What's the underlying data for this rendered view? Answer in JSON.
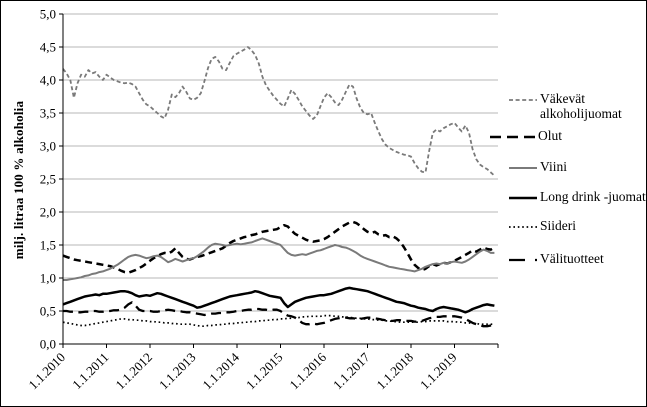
{
  "figure": {
    "background": "#ffffff",
    "border_color": "#000000",
    "grid_color": "#b7b7b7",
    "axis_color": "#000000"
  },
  "y_axis": {
    "title": "milj. litraa 100 % alkoholia",
    "tick_labels": [
      "5,0",
      "4,5",
      "4,0",
      "3,5",
      "3,0",
      "2,5",
      "2,0",
      "1,5",
      "1,0",
      "0,5",
      "0,0"
    ],
    "min": 0,
    "max": 5,
    "step": 0.5
  },
  "x_axis": {
    "tick_labels": [
      "1.1.2010",
      "1.1.2011",
      "1.1.2012",
      "1.1.2013",
      "1.1.2014",
      "1.1.2015",
      "1.1.2016",
      "1.1.2017",
      "1.1.2018",
      "1.1.2019"
    ],
    "start_year": 2010,
    "end_year": 2020,
    "tick_interval_years": 1
  },
  "legend": {
    "items": [
      {
        "series": "vakevat",
        "label": "Väkevät alkoholijuomat"
      },
      {
        "series": "olut",
        "label": "Olut"
      },
      {
        "series": "viini",
        "label": "Viini"
      },
      {
        "series": "longdrink",
        "label": "Long drink -juomat"
      },
      {
        "series": "siideri",
        "label": "Siideri"
      },
      {
        "series": "valituotteet",
        "label": "Välituotteet"
      }
    ]
  },
  "chart_data": {
    "type": "line",
    "title": "",
    "xlabel": "",
    "ylabel": "milj. litraa 100 % alkoholia",
    "ylim": [
      0,
      5
    ],
    "xlim_years": [
      2010,
      2020
    ],
    "grid": true,
    "legend_position": "right",
    "x_start_year": 2010,
    "points_per_year": 12,
    "x_tick_labels": [
      "1.1.2010",
      "1.1.2011",
      "1.1.2012",
      "1.1.2013",
      "1.1.2014",
      "1.1.2015",
      "1.1.2016",
      "1.1.2017",
      "1.1.2018",
      "1.1.2019"
    ],
    "series": [
      {
        "id": "vakevat",
        "name": "Väkevät alkoholijuomat",
        "color": "#7a7a7a",
        "dash": "4 2.6",
        "legend_dash": "4 2.6",
        "width": 1.8,
        "values": [
          4.17,
          4.1,
          4.0,
          3.73,
          3.95,
          4.08,
          4.05,
          4.15,
          4.1,
          4.12,
          4.05,
          4.0,
          4.08,
          4.04,
          4.0,
          3.98,
          3.96,
          3.95,
          3.96,
          3.94,
          3.9,
          3.8,
          3.7,
          3.63,
          3.6,
          3.55,
          3.5,
          3.45,
          3.42,
          3.55,
          3.78,
          3.74,
          3.8,
          3.9,
          3.82,
          3.72,
          3.7,
          3.73,
          3.8,
          3.98,
          4.18,
          4.32,
          4.35,
          4.28,
          4.17,
          4.15,
          4.26,
          4.36,
          4.4,
          4.43,
          4.46,
          4.5,
          4.45,
          4.38,
          4.25,
          4.05,
          3.92,
          3.84,
          3.76,
          3.7,
          3.64,
          3.6,
          3.72,
          3.85,
          3.79,
          3.7,
          3.6,
          3.53,
          3.46,
          3.41,
          3.46,
          3.6,
          3.73,
          3.8,
          3.74,
          3.66,
          3.62,
          3.7,
          3.82,
          3.93,
          3.9,
          3.72,
          3.58,
          3.5,
          3.48,
          3.5,
          3.35,
          3.22,
          3.1,
          3.02,
          2.97,
          2.94,
          2.91,
          2.89,
          2.87,
          2.86,
          2.84,
          2.74,
          2.66,
          2.61,
          2.6,
          2.92,
          3.2,
          3.25,
          3.22,
          3.27,
          3.3,
          3.33,
          3.35,
          3.28,
          3.22,
          3.31,
          3.2,
          2.95,
          2.8,
          2.72,
          2.68,
          2.65,
          2.6,
          2.55
        ]
      },
      {
        "id": "olut",
        "name": "Olut",
        "color": "#000000",
        "dash": "7 4.5",
        "legend_dash": "11 6",
        "width": 2.5,
        "values": [
          1.34,
          1.32,
          1.3,
          1.28,
          1.27,
          1.26,
          1.25,
          1.24,
          1.23,
          1.22,
          1.21,
          1.2,
          1.19,
          1.18,
          1.16,
          1.14,
          1.11,
          1.09,
          1.08,
          1.1,
          1.12,
          1.15,
          1.18,
          1.22,
          1.26,
          1.3,
          1.33,
          1.36,
          1.38,
          1.37,
          1.4,
          1.45,
          1.38,
          1.32,
          1.29,
          1.28,
          1.3,
          1.32,
          1.33,
          1.35,
          1.37,
          1.39,
          1.41,
          1.43,
          1.45,
          1.49,
          1.53,
          1.56,
          1.58,
          1.6,
          1.62,
          1.63,
          1.65,
          1.66,
          1.68,
          1.7,
          1.71,
          1.72,
          1.73,
          1.74,
          1.77,
          1.8,
          1.78,
          1.72,
          1.67,
          1.64,
          1.61,
          1.58,
          1.56,
          1.55,
          1.56,
          1.57,
          1.59,
          1.62,
          1.66,
          1.7,
          1.74,
          1.78,
          1.81,
          1.84,
          1.85,
          1.83,
          1.79,
          1.74,
          1.7,
          1.68,
          1.7,
          1.66,
          1.64,
          1.65,
          1.62,
          1.63,
          1.6,
          1.55,
          1.47,
          1.38,
          1.28,
          1.2,
          1.15,
          1.12,
          1.14,
          1.18,
          1.21,
          1.19,
          1.21,
          1.23,
          1.22,
          1.24,
          1.26,
          1.29,
          1.32,
          1.35,
          1.38,
          1.42,
          1.4,
          1.43,
          1.46,
          1.44,
          1.43,
          1.46
        ]
      },
      {
        "id": "viini",
        "name": "Viini",
        "color": "#7a7a7a",
        "dash": "",
        "legend_dash": "",
        "width": 2,
        "values": [
          0.97,
          0.97,
          0.98,
          0.99,
          1.0,
          1.01,
          1.03,
          1.04,
          1.06,
          1.07,
          1.09,
          1.1,
          1.12,
          1.14,
          1.17,
          1.2,
          1.24,
          1.28,
          1.32,
          1.34,
          1.35,
          1.34,
          1.32,
          1.3,
          1.31,
          1.33,
          1.34,
          1.32,
          1.28,
          1.24,
          1.26,
          1.29,
          1.27,
          1.25,
          1.27,
          1.29,
          1.3,
          1.33,
          1.37,
          1.41,
          1.46,
          1.5,
          1.52,
          1.51,
          1.5,
          1.49,
          1.5,
          1.51,
          1.52,
          1.51,
          1.52,
          1.53,
          1.54,
          1.56,
          1.58,
          1.6,
          1.58,
          1.56,
          1.54,
          1.52,
          1.5,
          1.44,
          1.38,
          1.35,
          1.34,
          1.35,
          1.36,
          1.35,
          1.37,
          1.39,
          1.41,
          1.42,
          1.44,
          1.46,
          1.48,
          1.5,
          1.49,
          1.47,
          1.46,
          1.44,
          1.41,
          1.38,
          1.34,
          1.31,
          1.29,
          1.27,
          1.25,
          1.23,
          1.21,
          1.19,
          1.17,
          1.16,
          1.15,
          1.14,
          1.13,
          1.12,
          1.11,
          1.1,
          1.12,
          1.14,
          1.17,
          1.19,
          1.21,
          1.22,
          1.21,
          1.23,
          1.22,
          1.24,
          1.25,
          1.24,
          1.23,
          1.25,
          1.28,
          1.32,
          1.36,
          1.4,
          1.43,
          1.41,
          1.38,
          1.38
        ]
      },
      {
        "id": "longdrink",
        "name": "Long drink -juomat",
        "color": "#000000",
        "dash": "",
        "legend_dash": "",
        "width": 2.5,
        "values": [
          0.6,
          0.62,
          0.64,
          0.66,
          0.68,
          0.7,
          0.72,
          0.73,
          0.74,
          0.75,
          0.74,
          0.76,
          0.76,
          0.77,
          0.78,
          0.79,
          0.8,
          0.8,
          0.79,
          0.77,
          0.74,
          0.72,
          0.73,
          0.74,
          0.73,
          0.75,
          0.77,
          0.76,
          0.74,
          0.72,
          0.7,
          0.68,
          0.66,
          0.64,
          0.62,
          0.6,
          0.58,
          0.55,
          0.56,
          0.58,
          0.6,
          0.62,
          0.64,
          0.66,
          0.68,
          0.7,
          0.72,
          0.73,
          0.74,
          0.75,
          0.76,
          0.77,
          0.78,
          0.8,
          0.79,
          0.77,
          0.75,
          0.73,
          0.72,
          0.71,
          0.7,
          0.62,
          0.56,
          0.6,
          0.64,
          0.66,
          0.68,
          0.7,
          0.71,
          0.72,
          0.73,
          0.74,
          0.74,
          0.75,
          0.76,
          0.78,
          0.8,
          0.82,
          0.84,
          0.85,
          0.84,
          0.83,
          0.82,
          0.81,
          0.8,
          0.78,
          0.76,
          0.74,
          0.72,
          0.7,
          0.68,
          0.66,
          0.64,
          0.63,
          0.62,
          0.6,
          0.58,
          0.57,
          0.55,
          0.54,
          0.53,
          0.51,
          0.5,
          0.53,
          0.55,
          0.56,
          0.55,
          0.54,
          0.53,
          0.52,
          0.5,
          0.48,
          0.5,
          0.53,
          0.55,
          0.57,
          0.59,
          0.6,
          0.59,
          0.58
        ]
      },
      {
        "id": "siideri",
        "name": "Siideri",
        "color": "#000000",
        "dash": "1.6 2.8",
        "legend_dash": "1.6 2.8",
        "width": 1.7,
        "values": [
          0.33,
          0.32,
          0.31,
          0.3,
          0.29,
          0.28,
          0.28,
          0.29,
          0.3,
          0.31,
          0.32,
          0.33,
          0.34,
          0.35,
          0.36,
          0.37,
          0.38,
          0.38,
          0.37,
          0.37,
          0.36,
          0.36,
          0.35,
          0.35,
          0.34,
          0.34,
          0.33,
          0.33,
          0.32,
          0.32,
          0.31,
          0.31,
          0.3,
          0.3,
          0.3,
          0.3,
          0.29,
          0.28,
          0.27,
          0.27,
          0.28,
          0.28,
          0.29,
          0.29,
          0.3,
          0.3,
          0.31,
          0.31,
          0.32,
          0.32,
          0.33,
          0.33,
          0.34,
          0.34,
          0.35,
          0.35,
          0.36,
          0.36,
          0.37,
          0.37,
          0.38,
          0.38,
          0.39,
          0.39,
          0.4,
          0.4,
          0.41,
          0.41,
          0.42,
          0.42,
          0.42,
          0.42,
          0.43,
          0.43,
          0.43,
          0.42,
          0.42,
          0.41,
          0.41,
          0.4,
          0.4,
          0.39,
          0.39,
          0.38,
          0.38,
          0.37,
          0.37,
          0.36,
          0.36,
          0.35,
          0.35,
          0.34,
          0.34,
          0.33,
          0.33,
          0.33,
          0.33,
          0.33,
          0.33,
          0.34,
          0.34,
          0.35,
          0.35,
          0.35,
          0.35,
          0.35,
          0.34,
          0.34,
          0.34,
          0.33,
          0.33,
          0.32,
          0.32,
          0.31,
          0.31,
          0.3,
          0.3,
          0.3,
          0.3,
          0.3
        ]
      },
      {
        "id": "valituotteet",
        "name": "Välituotteet",
        "color": "#000000",
        "dash": "10 5.5",
        "legend_dash": "16 10",
        "width": 2.3,
        "values": [
          0.5,
          0.5,
          0.49,
          0.49,
          0.48,
          0.48,
          0.49,
          0.49,
          0.5,
          0.5,
          0.49,
          0.49,
          0.5,
          0.5,
          0.51,
          0.51,
          0.52,
          0.55,
          0.6,
          0.63,
          0.58,
          0.52,
          0.5,
          0.5,
          0.5,
          0.49,
          0.49,
          0.5,
          0.51,
          0.52,
          0.51,
          0.5,
          0.5,
          0.49,
          0.48,
          0.48,
          0.47,
          0.46,
          0.45,
          0.44,
          0.45,
          0.46,
          0.46,
          0.47,
          0.47,
          0.48,
          0.48,
          0.49,
          0.5,
          0.5,
          0.51,
          0.52,
          0.52,
          0.53,
          0.53,
          0.52,
          0.52,
          0.51,
          0.52,
          0.52,
          0.5,
          0.46,
          0.43,
          0.42,
          0.4,
          0.36,
          0.32,
          0.3,
          0.3,
          0.31,
          0.3,
          0.31,
          0.32,
          0.34,
          0.36,
          0.38,
          0.39,
          0.4,
          0.4,
          0.39,
          0.39,
          0.38,
          0.38,
          0.39,
          0.4,
          0.4,
          0.39,
          0.38,
          0.37,
          0.36,
          0.35,
          0.35,
          0.36,
          0.36,
          0.35,
          0.35,
          0.35,
          0.34,
          0.34,
          0.35,
          0.37,
          0.39,
          0.4,
          0.41,
          0.41,
          0.42,
          0.42,
          0.42,
          0.42,
          0.41,
          0.4,
          0.38,
          0.35,
          0.32,
          0.3,
          0.28,
          0.27,
          0.27,
          0.28,
          0.28
        ]
      }
    ]
  }
}
